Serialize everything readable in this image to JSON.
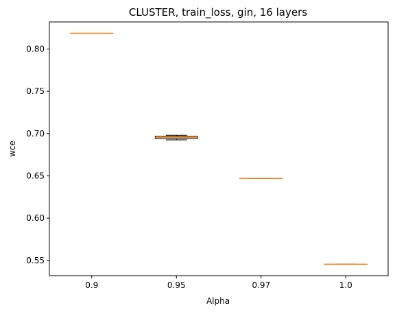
{
  "chart_data": {
    "type": "box",
    "title": "CLUSTER, train_loss, gin, 16 layers",
    "xlabel": "Alpha",
    "ylabel": "wce",
    "categories": [
      "0.9",
      "0.95",
      "0.97",
      "1.0"
    ],
    "ylim": [
      0.532,
      0.832
    ],
    "yticks": [
      0.55,
      0.6,
      0.65,
      0.7,
      0.75,
      0.8
    ],
    "ytick_labels": [
      "0.55",
      "0.60",
      "0.65",
      "0.70",
      "0.75",
      "0.80"
    ],
    "boxes": [
      {
        "category": "0.9",
        "whisker_low": 0.8186,
        "q1": 0.8186,
        "median": 0.8186,
        "q3": 0.8186,
        "whisker_high": 0.8186
      },
      {
        "category": "0.95",
        "whisker_low": 0.6925,
        "q1": 0.6938,
        "median": 0.6955,
        "q3": 0.697,
        "whisker_high": 0.698
      },
      {
        "category": "0.97",
        "whisker_low": 0.647,
        "q1": 0.647,
        "median": 0.647,
        "q3": 0.647,
        "whisker_high": 0.647
      },
      {
        "category": "1.0",
        "whisker_low": 0.5455,
        "q1": 0.5455,
        "median": 0.5455,
        "q3": 0.5455,
        "whisker_high": 0.5455
      }
    ],
    "colors": {
      "box_edge": "#000000",
      "median": "#ff7f0e",
      "axes": "#000000"
    },
    "grid": false,
    "legend": "none"
  }
}
